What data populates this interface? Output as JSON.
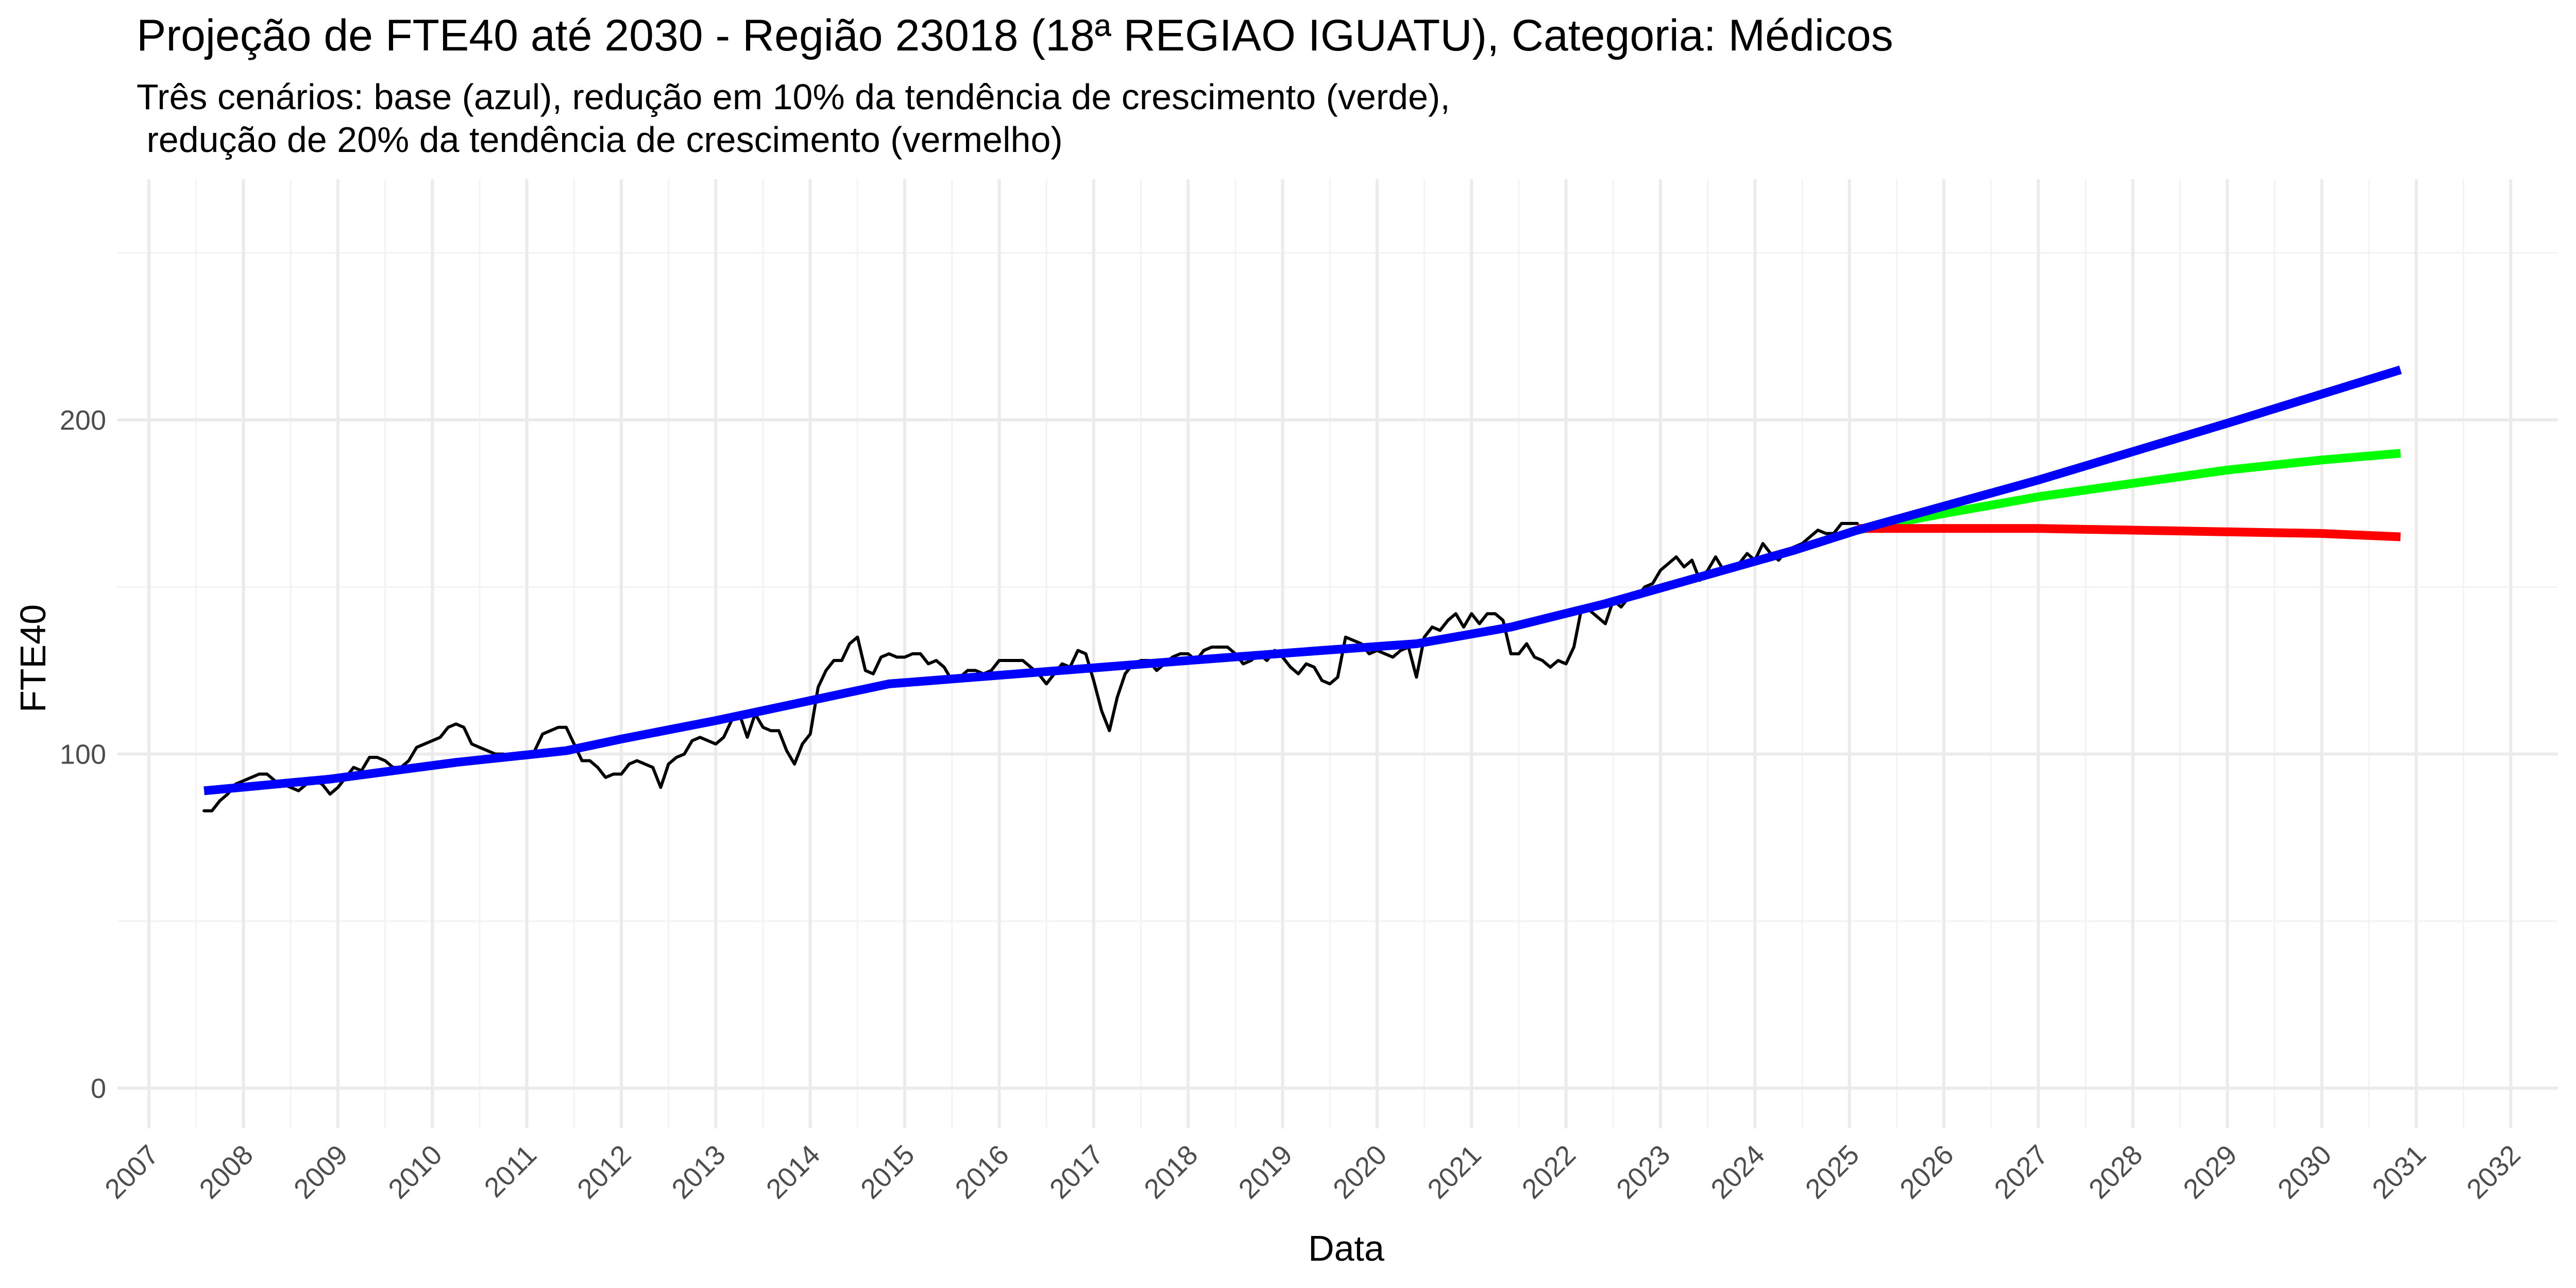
{
  "chart_data": {
    "type": "line",
    "title": "Projeção de FTE40 até 2030 - Região 23018 (18ª REGIAO IGUATU), Categoria: Médicos",
    "subtitle_lines": [
      "Três cenários: base (azul), redução em 10% da tendência de crescimento (verde),",
      " redução de 20% da tendência de crescimento (vermelho)"
    ],
    "xlabel": "Data",
    "ylabel": "FTE40",
    "x_range": [
      "2006-09-01",
      "2032-07-01"
    ],
    "ylim": [
      -12,
      272
    ],
    "x_ticks": [
      "2007",
      "2008",
      "2009",
      "2010",
      "2011",
      "2012",
      "2013",
      "2014",
      "2015",
      "2016",
      "2017",
      "2018",
      "2019",
      "2020",
      "2021",
      "2022",
      "2023",
      "2024",
      "2025",
      "2026",
      "2027",
      "2028",
      "2029",
      "2030",
      "2031",
      "2032"
    ],
    "y_ticks": [
      0,
      100,
      200
    ],
    "grid": true,
    "legend": "none",
    "series": [
      {
        "color": "#000000",
        "points": [
          [
            "2007-08",
            83
          ],
          [
            "2007-09",
            83
          ],
          [
            "2007-10",
            86
          ],
          [
            "2007-11",
            88
          ],
          [
            "2007-12",
            91
          ],
          [
            "2008-01",
            92
          ],
          [
            "2008-02",
            93
          ],
          [
            "2008-03",
            94
          ],
          [
            "2008-04",
            94
          ],
          [
            "2008-05",
            92
          ],
          [
            "2008-06",
            91
          ],
          [
            "2008-07",
            90
          ],
          [
            "2008-08",
            89
          ],
          [
            "2008-09",
            91
          ],
          [
            "2008-10",
            92
          ],
          [
            "2008-11",
            91
          ],
          [
            "2008-12",
            88
          ],
          [
            "2009-01",
            90
          ],
          [
            "2009-02",
            93
          ],
          [
            "2009-03",
            96
          ],
          [
            "2009-04",
            95
          ],
          [
            "2009-05",
            99
          ],
          [
            "2009-06",
            99
          ],
          [
            "2009-07",
            98
          ],
          [
            "2009-08",
            96
          ],
          [
            "2009-09",
            96
          ],
          [
            "2009-10",
            98
          ],
          [
            "2009-11",
            102
          ],
          [
            "2009-12",
            103
          ],
          [
            "2010-01",
            104
          ],
          [
            "2010-02",
            105
          ],
          [
            "2010-03",
            108
          ],
          [
            "2010-04",
            109
          ],
          [
            "2010-05",
            108
          ],
          [
            "2010-06",
            103
          ],
          [
            "2010-07",
            102
          ],
          [
            "2010-08",
            101
          ],
          [
            "2010-09",
            100
          ],
          [
            "2010-10",
            100
          ],
          [
            "2010-11",
            99
          ],
          [
            "2010-12",
            100
          ],
          [
            "2011-01",
            99
          ],
          [
            "2011-02",
            101
          ],
          [
            "2011-03",
            106
          ],
          [
            "2011-04",
            107
          ],
          [
            "2011-05",
            108
          ],
          [
            "2011-06",
            108
          ],
          [
            "2011-07",
            103
          ],
          [
            "2011-08",
            98
          ],
          [
            "2011-09",
            98
          ],
          [
            "2011-10",
            96
          ],
          [
            "2011-11",
            93
          ],
          [
            "2011-12",
            94
          ],
          [
            "2012-01",
            94
          ],
          [
            "2012-02",
            97
          ],
          [
            "2012-03",
            98
          ],
          [
            "2012-04",
            97
          ],
          [
            "2012-05",
            96
          ],
          [
            "2012-06",
            90
          ],
          [
            "2012-07",
            97
          ],
          [
            "2012-08",
            99
          ],
          [
            "2012-09",
            100
          ],
          [
            "2012-10",
            104
          ],
          [
            "2012-11",
            105
          ],
          [
            "2012-12",
            104
          ],
          [
            "2013-01",
            103
          ],
          [
            "2013-02",
            105
          ],
          [
            "2013-03",
            110
          ],
          [
            "2013-04",
            112
          ],
          [
            "2013-05",
            105
          ],
          [
            "2013-06",
            112
          ],
          [
            "2013-07",
            108
          ],
          [
            "2013-08",
            107
          ],
          [
            "2013-09",
            107
          ],
          [
            "2013-10",
            101
          ],
          [
            "2013-11",
            97
          ],
          [
            "2013-12",
            103
          ],
          [
            "2014-01",
            106
          ],
          [
            "2014-02",
            120
          ],
          [
            "2014-03",
            125
          ],
          [
            "2014-04",
            128
          ],
          [
            "2014-05",
            128
          ],
          [
            "2014-06",
            133
          ],
          [
            "2014-07",
            135
          ],
          [
            "2014-08",
            125
          ],
          [
            "2014-09",
            124
          ],
          [
            "2014-10",
            129
          ],
          [
            "2014-11",
            130
          ],
          [
            "2014-12",
            129
          ],
          [
            "2015-01",
            129
          ],
          [
            "2015-02",
            130
          ],
          [
            "2015-03",
            130
          ],
          [
            "2015-04",
            127
          ],
          [
            "2015-05",
            128
          ],
          [
            "2015-06",
            126
          ],
          [
            "2015-07",
            122
          ],
          [
            "2015-08",
            123
          ],
          [
            "2015-09",
            125
          ],
          [
            "2015-10",
            125
          ],
          [
            "2015-11",
            124
          ],
          [
            "2015-12",
            125
          ],
          [
            "2016-01",
            128
          ],
          [
            "2016-02",
            128
          ],
          [
            "2016-03",
            128
          ],
          [
            "2016-04",
            128
          ],
          [
            "2016-05",
            126
          ],
          [
            "2016-06",
            124
          ],
          [
            "2016-07",
            121
          ],
          [
            "2016-08",
            124
          ],
          [
            "2016-09",
            127
          ],
          [
            "2016-10",
            126
          ],
          [
            "2016-11",
            131
          ],
          [
            "2016-12",
            130
          ],
          [
            "2017-01",
            122
          ],
          [
            "2017-02",
            113
          ],
          [
            "2017-03",
            107
          ],
          [
            "2017-04",
            117
          ],
          [
            "2017-05",
            124
          ],
          [
            "2017-06",
            127
          ],
          [
            "2017-07",
            128
          ],
          [
            "2017-08",
            128
          ],
          [
            "2017-09",
            125
          ],
          [
            "2017-10",
            127
          ],
          [
            "2017-11",
            129
          ],
          [
            "2017-12",
            130
          ],
          [
            "2018-01",
            130
          ],
          [
            "2018-02",
            128
          ],
          [
            "2018-03",
            131
          ],
          [
            "2018-04",
            132
          ],
          [
            "2018-05",
            132
          ],
          [
            "2018-06",
            132
          ],
          [
            "2018-07",
            130
          ],
          [
            "2018-08",
            127
          ],
          [
            "2018-09",
            128
          ],
          [
            "2018-10",
            130
          ],
          [
            "2018-11",
            128
          ],
          [
            "2018-12",
            131
          ],
          [
            "2019-01",
            129
          ],
          [
            "2019-02",
            126
          ],
          [
            "2019-03",
            124
          ],
          [
            "2019-04",
            127
          ],
          [
            "2019-05",
            126
          ],
          [
            "2019-06",
            122
          ],
          [
            "2019-07",
            121
          ],
          [
            "2019-08",
            123
          ],
          [
            "2019-09",
            135
          ],
          [
            "2019-10",
            134
          ],
          [
            "2019-11",
            133
          ],
          [
            "2019-12",
            130
          ],
          [
            "2020-01",
            131
          ],
          [
            "2020-02",
            130
          ],
          [
            "2020-03",
            129
          ],
          [
            "2020-04",
            131
          ],
          [
            "2020-05",
            132
          ],
          [
            "2020-06",
            123
          ],
          [
            "2020-07",
            135
          ],
          [
            "2020-08",
            138
          ],
          [
            "2020-09",
            137
          ],
          [
            "2020-10",
            140
          ],
          [
            "2020-11",
            142
          ],
          [
            "2020-12",
            138
          ],
          [
            "2021-01",
            142
          ],
          [
            "2021-02",
            139
          ],
          [
            "2021-03",
            142
          ],
          [
            "2021-04",
            142
          ],
          [
            "2021-05",
            140
          ],
          [
            "2021-06",
            130
          ],
          [
            "2021-07",
            130
          ],
          [
            "2021-08",
            133
          ],
          [
            "2021-09",
            129
          ],
          [
            "2021-10",
            128
          ],
          [
            "2021-11",
            126
          ],
          [
            "2021-12",
            128
          ],
          [
            "2022-01",
            127
          ],
          [
            "2022-02",
            132
          ],
          [
            "2022-03",
            144
          ],
          [
            "2022-04",
            143
          ],
          [
            "2022-05",
            141
          ],
          [
            "2022-06",
            139
          ],
          [
            "2022-07",
            146
          ],
          [
            "2022-08",
            144
          ],
          [
            "2022-09",
            147
          ],
          [
            "2022-10",
            147
          ],
          [
            "2022-11",
            150
          ],
          [
            "2022-12",
            151
          ],
          [
            "2023-01",
            155
          ],
          [
            "2023-02",
            157
          ],
          [
            "2023-03",
            159
          ],
          [
            "2023-04",
            156
          ],
          [
            "2023-05",
            158
          ],
          [
            "2023-06",
            152
          ],
          [
            "2023-07",
            155
          ],
          [
            "2023-08",
            159
          ],
          [
            "2023-09",
            155
          ],
          [
            "2023-10",
            155
          ],
          [
            "2023-11",
            157
          ],
          [
            "2023-12",
            160
          ],
          [
            "2024-01",
            158
          ],
          [
            "2024-02",
            163
          ],
          [
            "2024-03",
            160
          ],
          [
            "2024-04",
            158
          ],
          [
            "2024-05",
            161
          ],
          [
            "2024-06",
            162
          ],
          [
            "2024-07",
            163
          ],
          [
            "2024-08",
            165
          ],
          [
            "2024-09",
            167
          ],
          [
            "2024-10",
            166
          ],
          [
            "2024-11",
            166
          ],
          [
            "2024-12",
            169
          ],
          [
            "2025-01",
            169
          ],
          [
            "2025-02",
            169
          ]
        ]
      },
      {
        "color": "#0000ff",
        "points": [
          [
            "2007-08",
            89
          ],
          [
            "2008-12",
            92.5
          ],
          [
            "2010-04",
            97.5
          ],
          [
            "2011-06",
            101
          ],
          [
            "2012-01",
            104.5
          ],
          [
            "2013-01",
            110
          ],
          [
            "2014-01",
            116
          ],
          [
            "2014-11",
            121
          ],
          [
            "2016-06",
            124.5
          ],
          [
            "2018-01",
            128
          ],
          [
            "2019-06",
            131
          ],
          [
            "2020-06",
            133
          ],
          [
            "2021-06",
            138
          ],
          [
            "2022-06",
            145
          ],
          [
            "2023-06",
            153
          ],
          [
            "2024-06",
            161
          ],
          [
            "2025-02",
            167
          ],
          [
            "2027-01",
            182
          ],
          [
            "2029-01",
            199
          ],
          [
            "2030-11",
            215
          ]
        ]
      },
      {
        "color": "#00ff00",
        "points": [
          [
            "2025-02",
            167
          ],
          [
            "2026-01",
            172
          ],
          [
            "2027-01",
            177
          ],
          [
            "2028-01",
            181
          ],
          [
            "2029-01",
            185
          ],
          [
            "2030-01",
            188
          ],
          [
            "2030-11",
            190
          ]
        ]
      },
      {
        "color": "#ff0000",
        "points": [
          [
            "2025-02",
            167.5
          ],
          [
            "2026-01",
            167.5
          ],
          [
            "2027-01",
            167.5
          ],
          [
            "2028-01",
            167
          ],
          [
            "2029-01",
            166.5
          ],
          [
            "2030-01",
            166
          ],
          [
            "2030-11",
            165
          ]
        ]
      }
    ]
  }
}
